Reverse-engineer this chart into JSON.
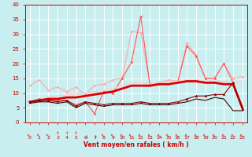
{
  "x": [
    0,
    1,
    2,
    3,
    4,
    5,
    6,
    7,
    8,
    9,
    10,
    11,
    12,
    13,
    14,
    15,
    16,
    17,
    18,
    19,
    20,
    21,
    22,
    23
  ],
  "series": [
    {
      "label": "rafales_light",
      "color": "#ffaaaa",
      "linewidth": 0.8,
      "marker": "D",
      "markersize": 1.5,
      "values": [
        12.5,
        14.5,
        11.0,
        12.0,
        10.5,
        12.0,
        9.5,
        12.5,
        13.0,
        14.5,
        15.0,
        31.0,
        30.5,
        13.0,
        13.5,
        14.5,
        14.0,
        27.0,
        23.0,
        15.0,
        15.0,
        20.0,
        15.0,
        15.5
      ]
    },
    {
      "label": "rafales_med",
      "color": "#ff5555",
      "linewidth": 0.8,
      "marker": "D",
      "markersize": 1.5,
      "values": [
        7.0,
        8.0,
        7.5,
        7.5,
        7.5,
        6.0,
        7.0,
        3.0,
        10.5,
        10.0,
        15.0,
        20.5,
        36.0,
        12.5,
        13.0,
        13.0,
        13.5,
        26.0,
        22.5,
        15.0,
        15.0,
        20.0,
        13.5,
        4.5
      ]
    },
    {
      "label": "vent_moyen_light",
      "color": "#ffcccc",
      "linewidth": 1.0,
      "marker": null,
      "markersize": 0,
      "values": [
        7.0,
        7.5,
        8.5,
        9.0,
        9.5,
        9.5,
        10.0,
        10.5,
        11.0,
        11.5,
        12.5,
        13.5,
        13.5,
        13.0,
        13.5,
        14.0,
        14.0,
        14.5,
        14.5,
        14.0,
        14.0,
        14.0,
        13.5,
        13.5
      ]
    },
    {
      "label": "vent_moyen",
      "color": "#dd0000",
      "linewidth": 2.0,
      "marker": null,
      "markersize": 0,
      "values": [
        7.0,
        7.5,
        8.0,
        8.0,
        8.5,
        8.5,
        9.0,
        9.5,
        10.0,
        10.5,
        11.5,
        12.5,
        12.5,
        12.5,
        13.0,
        13.0,
        13.5,
        14.0,
        14.0,
        13.5,
        13.5,
        13.0,
        13.0,
        5.0
      ]
    },
    {
      "label": "vent_min",
      "color": "#880000",
      "linewidth": 0.8,
      "marker": "^",
      "markersize": 2,
      "values": [
        7.0,
        7.5,
        7.5,
        7.0,
        7.5,
        5.5,
        7.0,
        6.5,
        6.0,
        6.5,
        6.5,
        6.5,
        7.0,
        6.5,
        6.5,
        6.5,
        7.0,
        8.0,
        9.0,
        9.0,
        9.5,
        9.5,
        13.5,
        4.5
      ]
    },
    {
      "label": "vent_min2",
      "color": "#440000",
      "linewidth": 0.8,
      "marker": null,
      "markersize": 0,
      "values": [
        6.5,
        7.0,
        7.0,
        6.5,
        7.0,
        5.0,
        6.5,
        6.0,
        5.5,
        6.0,
        6.0,
        6.0,
        6.5,
        6.0,
        6.0,
        6.0,
        6.5,
        7.0,
        8.0,
        7.5,
        8.5,
        8.0,
        4.0,
        4.0
      ]
    }
  ],
  "arrow_directions": [
    225,
    225,
    225,
    270,
    270,
    270,
    90,
    90,
    225,
    225,
    225,
    225,
    225,
    225,
    225,
    225,
    225,
    225,
    225,
    225,
    225,
    225,
    225,
    225
  ],
  "xlabel": "Vent moyen/en rafales ( km/h )",
  "xlim": [
    -0.5,
    23.5
  ],
  "ylim": [
    0,
    40
  ],
  "yticks": [
    0,
    5,
    10,
    15,
    20,
    25,
    30,
    35,
    40
  ],
  "xticks": [
    0,
    1,
    2,
    3,
    4,
    5,
    6,
    7,
    8,
    9,
    10,
    11,
    12,
    13,
    14,
    15,
    16,
    17,
    18,
    19,
    20,
    21,
    22,
    23
  ],
  "bg_color": "#c8eef0",
  "grid_color": "#ffffff",
  "text_color": "#cc0000"
}
